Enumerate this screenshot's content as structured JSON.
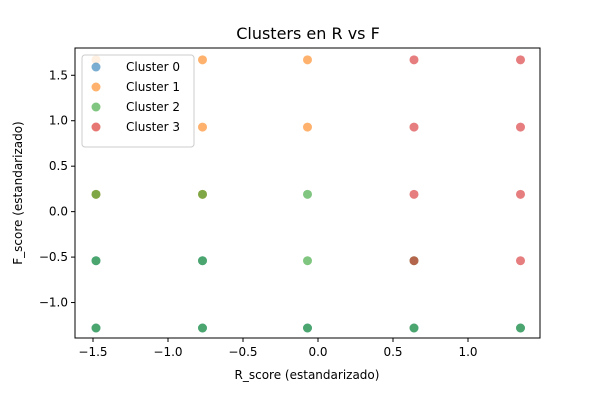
{
  "chart_data": {
    "type": "scatter",
    "title": "Clusters en R vs F",
    "xlabel": "R_score (estandarizado)",
    "ylabel": "F_score (estandarizado)",
    "xlim": [
      -1.62,
      1.48
    ],
    "ylim": [
      -1.39,
      1.8
    ],
    "xticks": [
      -1.5,
      -1.0,
      -0.5,
      0.0,
      0.5,
      1.0
    ],
    "xtick_labels": [
      "−1.5",
      "−1.0",
      "−0.5",
      "0.0",
      "0.5",
      "1.0"
    ],
    "yticks": [
      -1.0,
      -0.5,
      0.0,
      0.5,
      1.0,
      1.5
    ],
    "ytick_labels": [
      "−1.0",
      "−0.5",
      "0.0",
      "0.5",
      "1.0",
      "1.5"
    ],
    "grid": false,
    "legend_position": "top-left",
    "series": [
      {
        "name": "Cluster 0",
        "color": "#1f77b4",
        "points": [
          [
            -1.48,
            -1.28
          ],
          [
            -1.48,
            -0.54
          ],
          [
            -0.77,
            -0.54
          ],
          [
            -0.77,
            -1.28
          ],
          [
            -0.07,
            -1.28
          ],
          [
            0.64,
            -1.28
          ],
          [
            1.35,
            -1.28
          ]
        ]
      },
      {
        "name": "Cluster 1",
        "color": "#ff7f0e",
        "points": [
          [
            -1.48,
            1.67
          ],
          [
            -1.48,
            0.93
          ],
          [
            -1.48,
            0.19
          ],
          [
            -0.77,
            1.67
          ],
          [
            -0.77,
            0.93
          ],
          [
            -0.77,
            0.19
          ],
          [
            -0.07,
            1.67
          ],
          [
            -0.07,
            0.93
          ]
        ]
      },
      {
        "name": "Cluster 2",
        "color": "#2ca02c",
        "points": [
          [
            -1.48,
            0.19
          ],
          [
            -1.48,
            -0.54
          ],
          [
            -1.48,
            -1.28
          ],
          [
            -0.77,
            0.19
          ],
          [
            -0.77,
            -0.54
          ],
          [
            -0.77,
            -1.28
          ],
          [
            -0.07,
            0.19
          ],
          [
            -0.07,
            -0.54
          ],
          [
            -0.07,
            -1.28
          ],
          [
            0.64,
            -0.54
          ],
          [
            0.64,
            -1.28
          ],
          [
            1.35,
            -1.28
          ]
        ]
      },
      {
        "name": "Cluster 3",
        "color": "#d62728",
        "points": [
          [
            0.64,
            1.67
          ],
          [
            0.64,
            0.93
          ],
          [
            0.64,
            0.19
          ],
          [
            0.64,
            -0.54
          ],
          [
            1.35,
            1.67
          ],
          [
            1.35,
            0.93
          ],
          [
            1.35,
            0.19
          ],
          [
            1.35,
            -0.54
          ]
        ]
      }
    ]
  }
}
